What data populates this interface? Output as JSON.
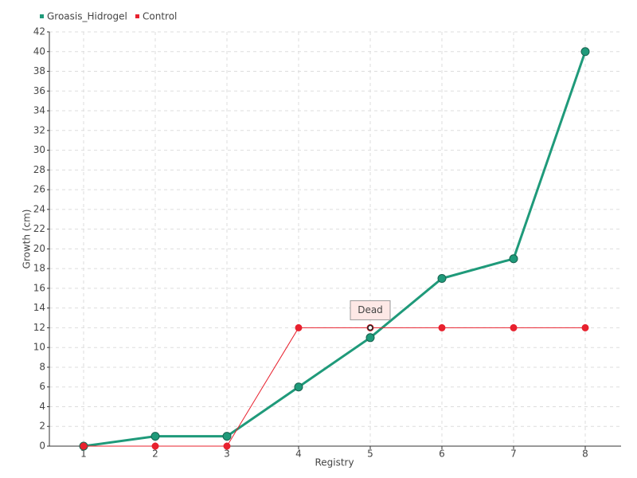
{
  "chart_data": {
    "type": "line",
    "x_label": "Registry",
    "y_label": "Growth (cm)",
    "categories": [
      "1",
      "2",
      "3",
      "4",
      "5",
      "6",
      "7",
      "8"
    ],
    "series": [
      {
        "name": "Groasis_Hidrogel",
        "color": "#1f9a7a",
        "values": [
          0,
          1,
          1,
          6,
          11,
          17,
          19,
          40
        ]
      },
      {
        "name": "Control",
        "color": "#e8212e",
        "values": [
          0,
          0,
          0,
          12,
          12,
          12,
          12,
          12
        ]
      }
    ],
    "annotations": [
      {
        "text": "Dead",
        "x": "5",
        "y": 12
      }
    ],
    "ylim": [
      0,
      42
    ],
    "yticks": [
      0,
      2,
      4,
      6,
      8,
      10,
      12,
      14,
      16,
      18,
      20,
      22,
      24,
      26,
      28,
      30,
      32,
      34,
      36,
      38,
      40,
      42
    ],
    "grid": true,
    "legend": "top-left"
  }
}
